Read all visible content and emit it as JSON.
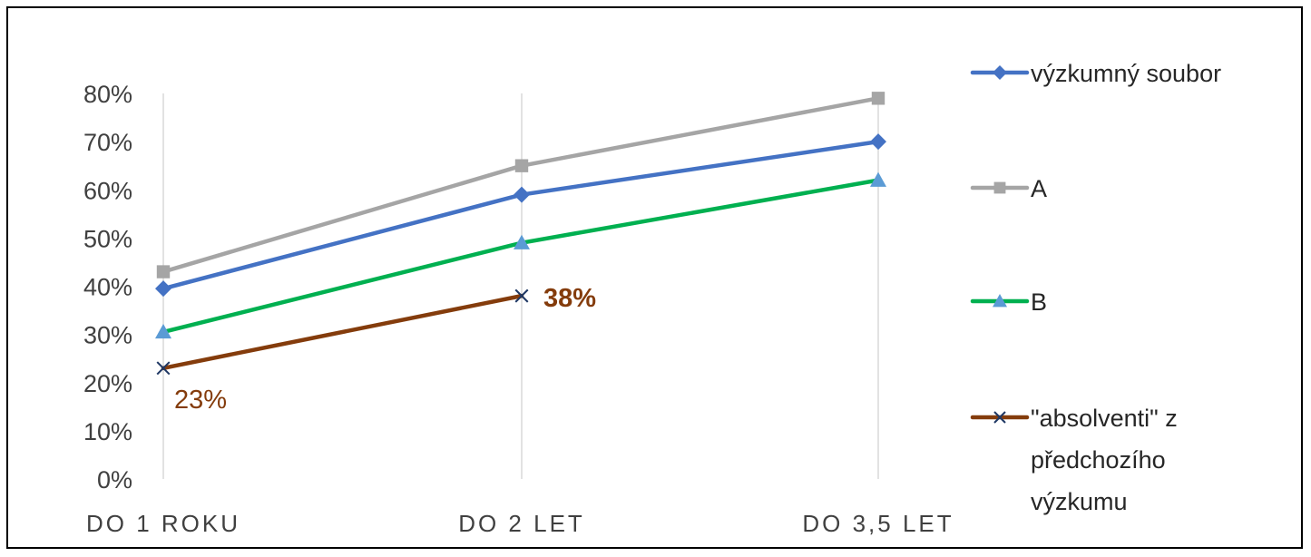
{
  "chart_data": {
    "type": "line",
    "categories": [
      "DO 1 ROKU",
      "DO 2 LET",
      "DO 3,5 LET"
    ],
    "ylim": [
      0,
      0.8
    ],
    "y_ticks": [
      {
        "value": 0.0,
        "label": "0%"
      },
      {
        "value": 0.1,
        "label": "10%"
      },
      {
        "value": 0.2,
        "label": "20%"
      },
      {
        "value": 0.3,
        "label": "30%"
      },
      {
        "value": 0.4,
        "label": "40%"
      },
      {
        "value": 0.5,
        "label": "50%"
      },
      {
        "value": 0.6,
        "label": "60%"
      },
      {
        "value": 0.7,
        "label": "70%"
      },
      {
        "value": 0.8,
        "label": "80%"
      }
    ],
    "grid": "vertical",
    "legend_position": "right",
    "series": [
      {
        "name": "výzkumný soubor",
        "color": "#4472C4",
        "marker": "diamond",
        "marker_color": "#4472C4",
        "values": [
          0.395,
          0.59,
          0.7
        ]
      },
      {
        "name": "A",
        "color": "#A5A5A5",
        "marker": "square",
        "marker_color": "#A5A5A5",
        "values": [
          0.43,
          0.65,
          0.79
        ]
      },
      {
        "name": "B",
        "color": "#00B050",
        "marker": "triangle",
        "marker_color": "#5B9BD5",
        "values": [
          0.305,
          0.49,
          0.62
        ]
      },
      {
        "name": "\"absolventi\" z předchozího výzkumu",
        "legend_lines": [
          "\"absolventi\" z",
          "předchozího",
          "výzkumu"
        ],
        "color": "#843C0C",
        "marker": "x",
        "marker_color": "#1F3864",
        "values": [
          0.23,
          0.38,
          null
        ]
      }
    ],
    "data_labels": [
      {
        "series": 3,
        "point": 0,
        "text": "23%",
        "bold": false,
        "color": "#843C0C"
      },
      {
        "series": 3,
        "point": 1,
        "text": "38%",
        "bold": true,
        "color": "#843C0C"
      }
    ]
  }
}
